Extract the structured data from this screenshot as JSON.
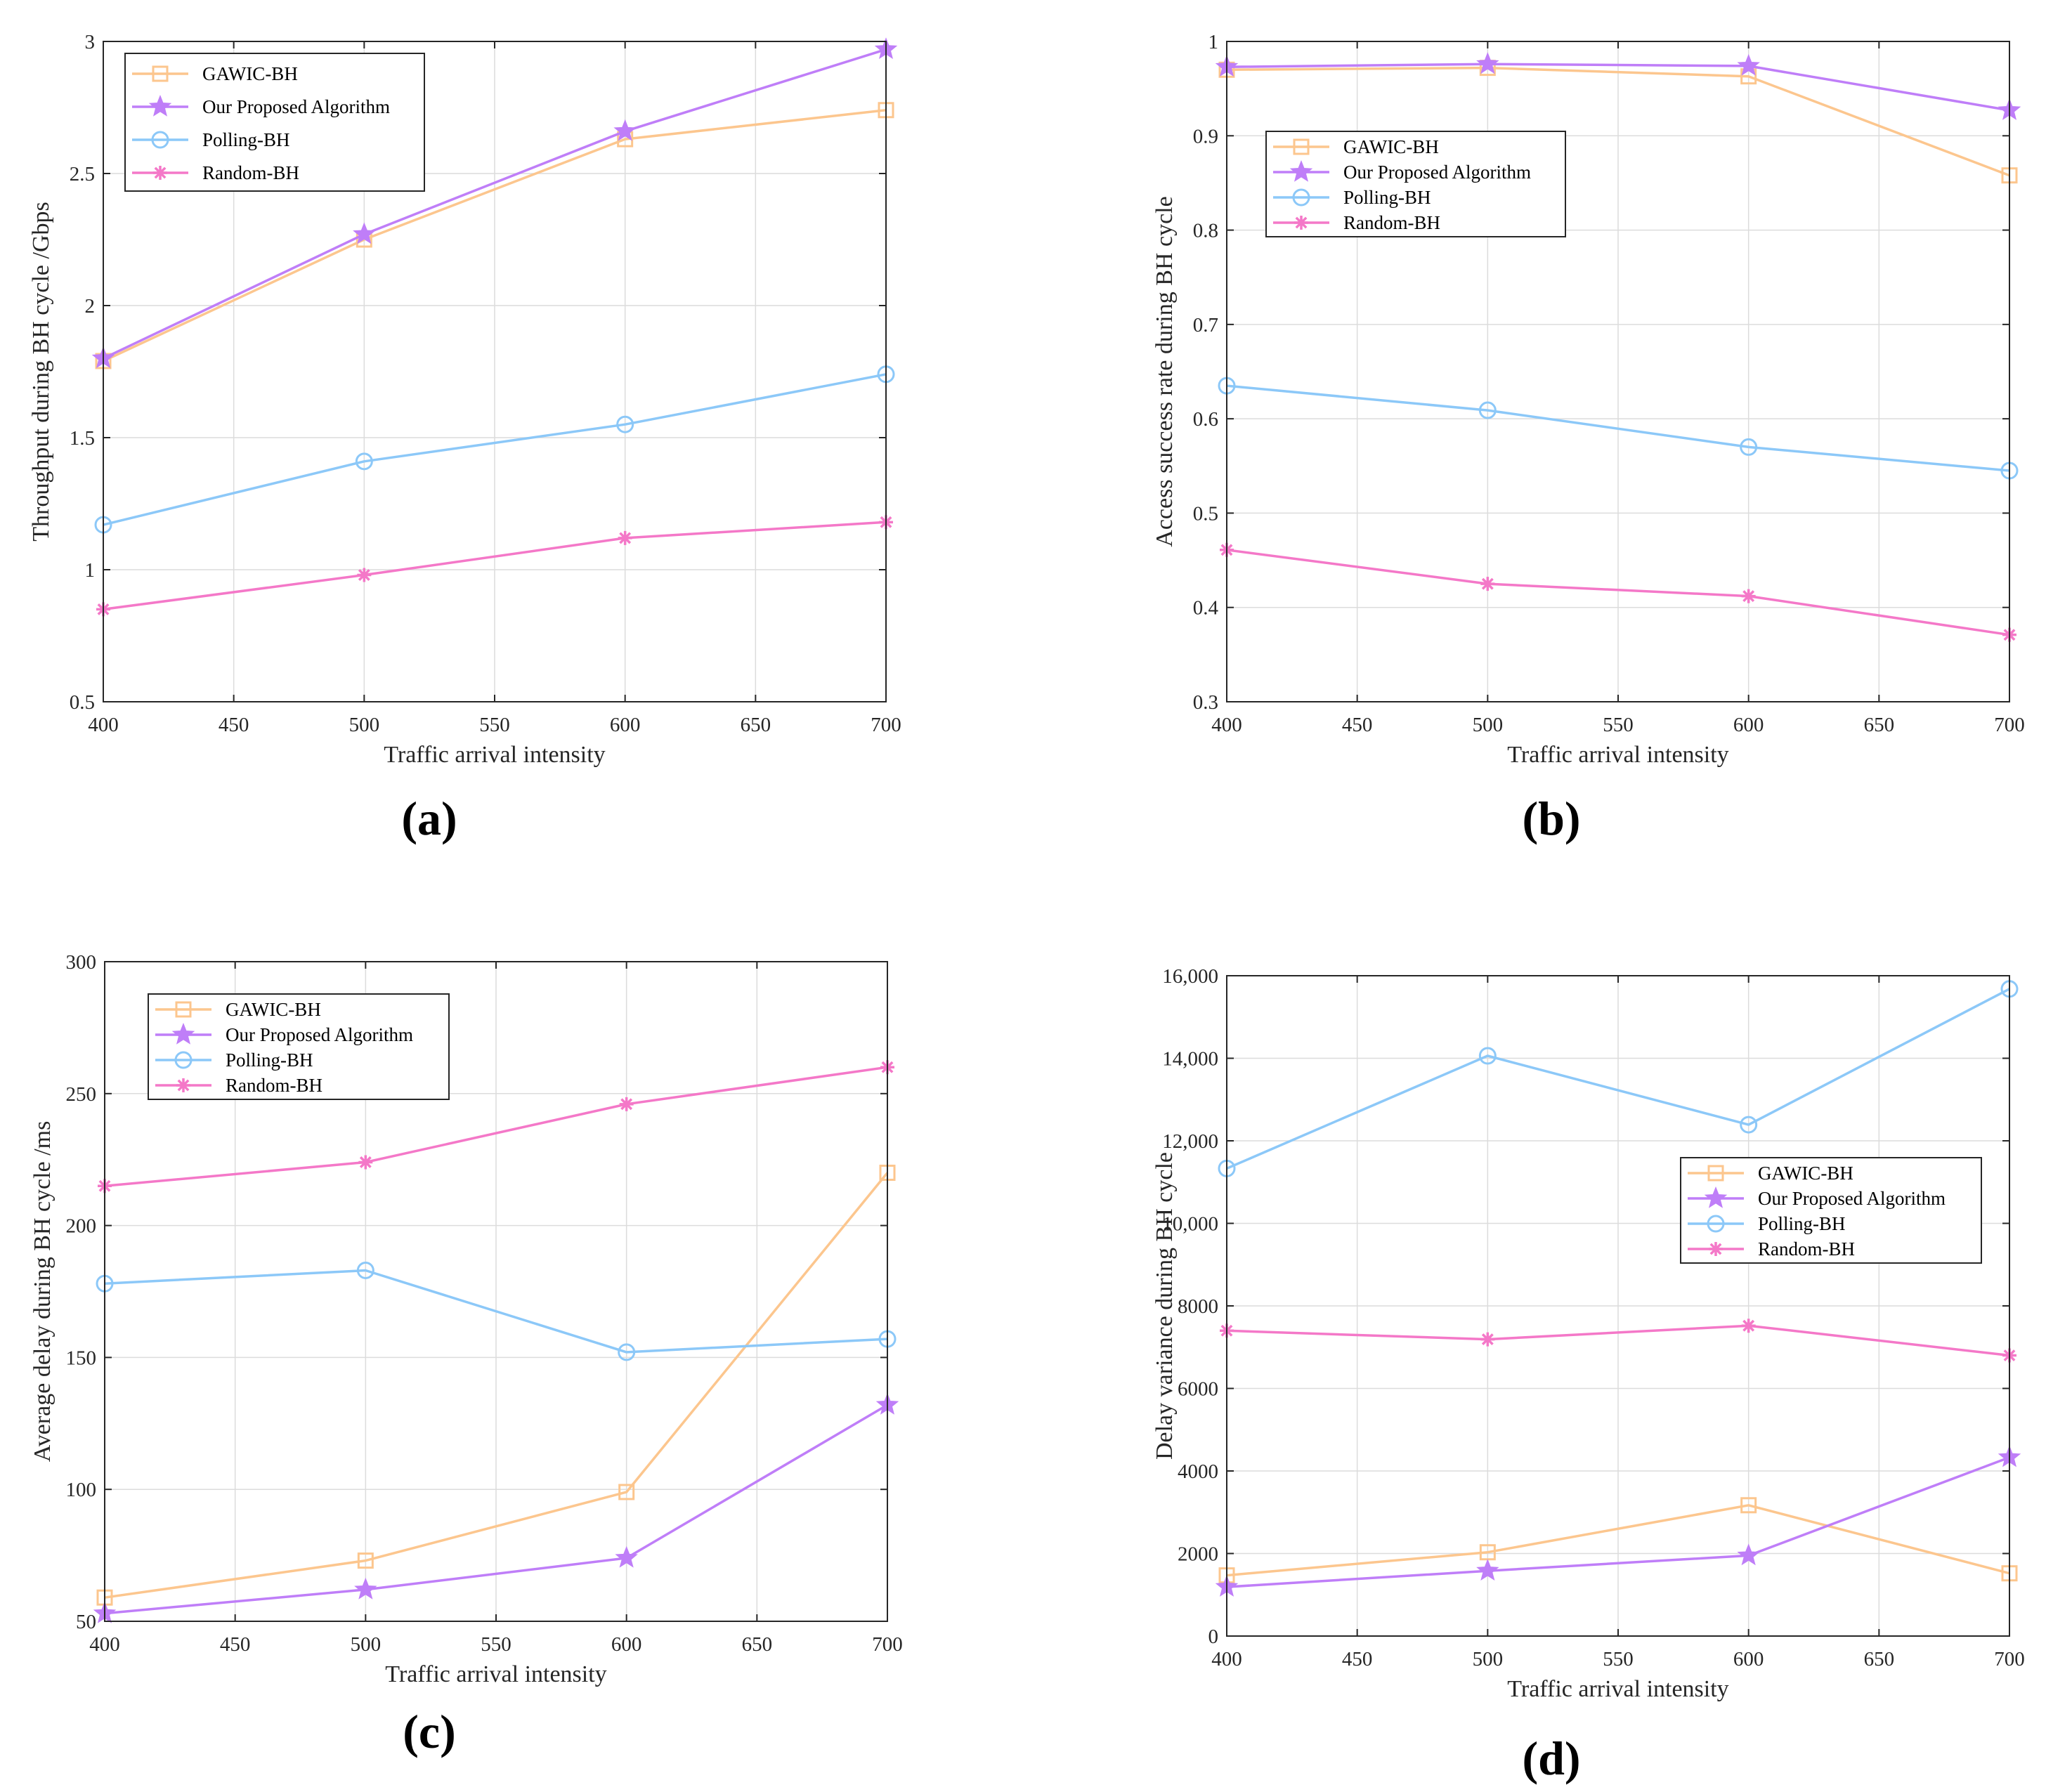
{
  "colors": {
    "gawic": "#FCC68E",
    "ours": "#BF7EF8",
    "polling": "#8CC8F8",
    "random": "#F478C8"
  },
  "series_info": [
    {
      "key": "gawic",
      "name": "GAWIC-BH",
      "marker": "square"
    },
    {
      "key": "ours",
      "name": "Our Proposed Algorithm",
      "marker": "star"
    },
    {
      "key": "polling",
      "name": "Polling-BH",
      "marker": "circle"
    },
    {
      "key": "random",
      "name": "Random-BH",
      "marker": "asterisk"
    }
  ],
  "chart_data": [
    {
      "type": "line",
      "panel_label": "(a)",
      "xlabel": "Traffic arrival intensity",
      "ylabel": "Throughput during BH cycle /Gbps",
      "x": [
        400,
        500,
        600,
        700
      ],
      "xlim": [
        400,
        700
      ],
      "ylim": [
        0.5,
        3
      ],
      "xticks": [
        "400",
        "450",
        "500",
        "550",
        "600",
        "650",
        "700"
      ],
      "yticks": [
        "0.5",
        "1",
        "1.5",
        "2",
        "2.5",
        "3"
      ],
      "legend": "top-left",
      "grid": true,
      "series": [
        {
          "name": "GAWIC-BH",
          "values": [
            1.79,
            2.25,
            2.63,
            2.74
          ]
        },
        {
          "name": "Our Proposed Algorithm",
          "values": [
            1.8,
            2.27,
            2.66,
            2.97
          ]
        },
        {
          "name": "Polling-BH",
          "values": [
            1.17,
            1.41,
            1.55,
            1.74
          ]
        },
        {
          "name": "Random-BH",
          "values": [
            0.85,
            0.98,
            1.12,
            1.18
          ]
        }
      ]
    },
    {
      "type": "line",
      "panel_label": "(b)",
      "xlabel": "Traffic arrival intensity",
      "ylabel": "Access success rate during BH cycle",
      "x": [
        400,
        500,
        600,
        700
      ],
      "xlim": [
        400,
        700
      ],
      "ylim": [
        0.3,
        1
      ],
      "xticks": [
        "400",
        "450",
        "500",
        "550",
        "600",
        "650",
        "700"
      ],
      "yticks": [
        "0.3",
        "0.4",
        "0.5",
        "0.6",
        "0.7",
        "0.8",
        "0.9",
        "1"
      ],
      "legend": "upper-left",
      "grid": true,
      "series": [
        {
          "name": "GAWIC-BH",
          "values": [
            0.97,
            0.972,
            0.963,
            0.858
          ]
        },
        {
          "name": "Our Proposed Algorithm",
          "values": [
            0.973,
            0.976,
            0.974,
            0.927
          ]
        },
        {
          "name": "Polling-BH",
          "values": [
            0.635,
            0.609,
            0.57,
            0.545
          ]
        },
        {
          "name": "Random-BH",
          "values": [
            0.461,
            0.425,
            0.412,
            0.371
          ]
        }
      ]
    },
    {
      "type": "line",
      "panel_label": "(c)",
      "xlabel": "Traffic arrival intensity",
      "ylabel": "Average delay during BH cycle /ms",
      "x": [
        400,
        500,
        600,
        700
      ],
      "xlim": [
        400,
        700
      ],
      "ylim": [
        50,
        300
      ],
      "xticks": [
        "400",
        "450",
        "500",
        "550",
        "600",
        "650",
        "700"
      ],
      "yticks": [
        "50",
        "100",
        "150",
        "200",
        "250",
        "300"
      ],
      "legend": "top-left",
      "grid": true,
      "series": [
        {
          "name": "GAWIC-BH",
          "values": [
            59,
            73,
            99,
            220
          ]
        },
        {
          "name": "Our Proposed Algorithm",
          "values": [
            53,
            62,
            74,
            132
          ]
        },
        {
          "name": "Polling-BH",
          "values": [
            178,
            183,
            152,
            157
          ]
        },
        {
          "name": "Random-BH",
          "values": [
            215,
            224,
            246,
            260
          ]
        }
      ]
    },
    {
      "type": "line",
      "panel_label": "(d)",
      "xlabel": "Traffic arrival intensity",
      "ylabel": "Delay variance during BH cycle",
      "x": [
        400,
        500,
        600,
        700
      ],
      "xlim": [
        400,
        700
      ],
      "ylim": [
        0,
        16000
      ],
      "xticks": [
        "400",
        "450",
        "500",
        "550",
        "600",
        "650",
        "700"
      ],
      "yticks": [
        "0",
        "2000",
        "4000",
        "6000",
        "8000",
        "10,000",
        "12,000",
        "14,000",
        "16,000"
      ],
      "legend": "middle-right",
      "grid": true,
      "series": [
        {
          "name": "GAWIC-BH",
          "values": [
            1470,
            2030,
            3170,
            1520
          ]
        },
        {
          "name": "Our Proposed Algorithm",
          "values": [
            1190,
            1580,
            1950,
            4330
          ]
        },
        {
          "name": "Polling-BH",
          "values": [
            11330,
            14060,
            12390,
            15680
          ]
        },
        {
          "name": "Random-BH",
          "values": [
            7400,
            7190,
            7520,
            6800
          ]
        }
      ]
    }
  ]
}
